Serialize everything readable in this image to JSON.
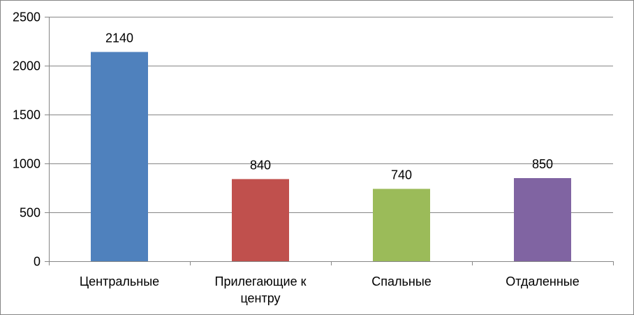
{
  "chart_data": {
    "type": "bar",
    "categories": [
      [
        "Центральные"
      ],
      [
        "Прилегающие к",
        "центру"
      ],
      [
        "Спальные"
      ],
      [
        "Отдаленные"
      ]
    ],
    "values": [
      2140,
      840,
      740,
      850
    ],
    "data_labels": [
      "2140",
      "840",
      "740",
      "850"
    ],
    "colors": [
      "#4F81BD",
      "#C0504D",
      "#9BBB59",
      "#8064A2"
    ],
    "ylim": [
      0,
      2500
    ],
    "yticks": [
      0,
      500,
      1000,
      1500,
      2000,
      2500
    ],
    "ytick_labels": [
      "0",
      "500",
      "1000",
      "1500",
      "2000",
      "2500"
    ],
    "grid": true,
    "legend": "none",
    "title": "",
    "xlabel": "",
    "ylabel": ""
  }
}
